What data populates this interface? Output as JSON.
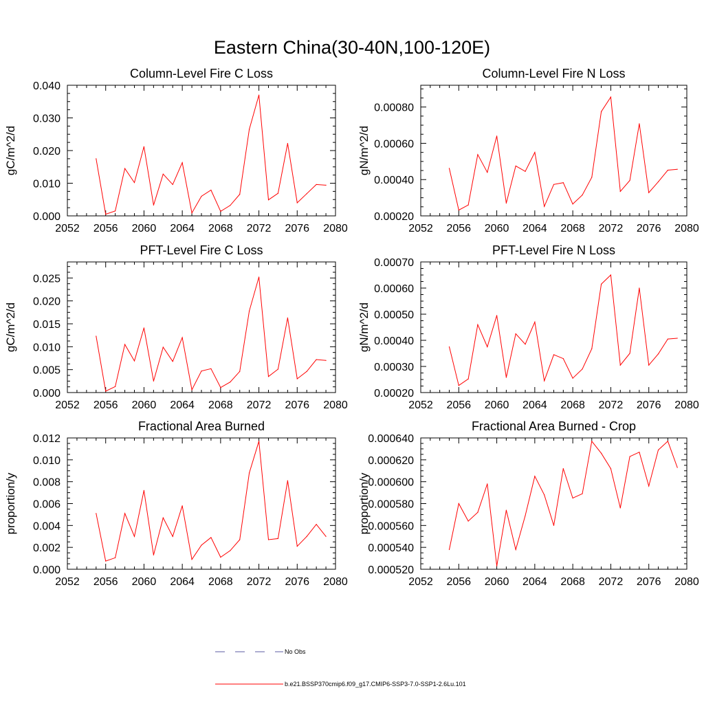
{
  "title": "Eastern China(30-40N,100-120E)",
  "legend": [
    {
      "label": "No Obs",
      "color": "#5a5aa0",
      "dash": true
    },
    {
      "label": "b.e21.BSSP370cmip6.f09_g17.CMIP6-SSP3-7.0-SSP1-2.6Lu.101",
      "color": "#ff0000",
      "dash": false
    }
  ],
  "chart_data": [
    {
      "type": "line",
      "title": "Column-Level Fire C Loss",
      "ylabel": "gC/m^2/d",
      "xlim": [
        2052,
        2080
      ],
      "xticks": [
        "2052",
        "2056",
        "2060",
        "2064",
        "2068",
        "2072",
        "2076",
        "2080"
      ],
      "ylim": [
        0,
        0.04
      ],
      "yticks": [
        "0.000",
        "0.010",
        "0.020",
        "0.030",
        "0.040"
      ],
      "x": [
        2055,
        2056,
        2057,
        2058,
        2059,
        2060,
        2061,
        2062,
        2063,
        2064,
        2065,
        2066,
        2067,
        2068,
        2069,
        2070,
        2071,
        2072,
        2073,
        2074,
        2075,
        2076,
        2077,
        2078,
        2079
      ],
      "series": [
        {
          "values": [
            0.0175,
            0.0005,
            0.0015,
            0.0145,
            0.0102,
            0.0212,
            0.0033,
            0.0128,
            0.0096,
            0.0163,
            0.0009,
            0.006,
            0.0079,
            0.0014,
            0.0032,
            0.0066,
            0.0265,
            0.037,
            0.0049,
            0.0069,
            0.0222,
            0.004,
            0.0068,
            0.0096,
            0.0094
          ]
        }
      ]
    },
    {
      "type": "line",
      "title": "Column-Level Fire N Loss",
      "ylabel": "gN/m^2/d",
      "xlim": [
        2052,
        2080
      ],
      "xticks": [
        "2052",
        "2056",
        "2060",
        "2064",
        "2068",
        "2072",
        "2076",
        "2080"
      ],
      "ylim": [
        0.0002,
        0.00092
      ],
      "yticks": [
        "0.00020",
        "0.00040",
        "0.00060",
        "0.00080"
      ],
      "x": [
        2055,
        2056,
        2057,
        2058,
        2059,
        2060,
        2061,
        2062,
        2063,
        2064,
        2065,
        2066,
        2067,
        2068,
        2069,
        2070,
        2071,
        2072,
        2073,
        2074,
        2075,
        2076,
        2077,
        2078,
        2079
      ],
      "series": [
        {
          "values": [
            0.000462,
            0.000232,
            0.00026,
            0.000538,
            0.00044,
            0.00064,
            0.00027,
            0.000475,
            0.000445,
            0.00055,
            0.000252,
            0.000373,
            0.000383,
            0.000265,
            0.000315,
            0.000413,
            0.000775,
            0.000855,
            0.000335,
            0.000395,
            0.000708,
            0.000328,
            0.000388,
            0.000452,
            0.000457
          ]
        }
      ]
    },
    {
      "type": "line",
      "title": "PFT-Level Fire C Loss",
      "ylabel": "gC/m^2/d",
      "xlim": [
        2052,
        2080
      ],
      "xticks": [
        "2052",
        "2056",
        "2060",
        "2064",
        "2068",
        "2072",
        "2076",
        "2080"
      ],
      "ylim": [
        0,
        0.0285
      ],
      "yticks": [
        "0.000",
        "0.005",
        "0.010",
        "0.015",
        "0.020",
        "0.025"
      ],
      "x": [
        2055,
        2056,
        2057,
        2058,
        2059,
        2060,
        2061,
        2062,
        2063,
        2064,
        2065,
        2066,
        2067,
        2068,
        2069,
        2070,
        2071,
        2072,
        2073,
        2074,
        2075,
        2076,
        2077,
        2078,
        2079
      ],
      "series": [
        {
          "values": [
            0.0123,
            0.0003,
            0.0013,
            0.0105,
            0.0069,
            0.0141,
            0.0025,
            0.0099,
            0.0068,
            0.012,
            0.0006,
            0.0047,
            0.0052,
            0.0011,
            0.0023,
            0.0046,
            0.0178,
            0.0252,
            0.0035,
            0.0051,
            0.0163,
            0.003,
            0.0046,
            0.0072,
            0.007
          ]
        }
      ]
    },
    {
      "type": "line",
      "title": "PFT-Level Fire N Loss",
      "ylabel": "gN/m^2/d",
      "xlim": [
        2052,
        2080
      ],
      "xticks": [
        "2052",
        "2056",
        "2060",
        "2064",
        "2068",
        "2072",
        "2076",
        "2080"
      ],
      "ylim": [
        0.0002,
        0.0007
      ],
      "yticks": [
        "0.00020",
        "0.00030",
        "0.00040",
        "0.00050",
        "0.00060",
        "0.00070"
      ],
      "x": [
        2055,
        2056,
        2057,
        2058,
        2059,
        2060,
        2061,
        2062,
        2063,
        2064,
        2065,
        2066,
        2067,
        2068,
        2069,
        2070,
        2071,
        2072,
        2073,
        2074,
        2075,
        2076,
        2077,
        2078,
        2079
      ],
      "series": [
        {
          "values": [
            0.000375,
            0.000227,
            0.000252,
            0.00046,
            0.000375,
            0.000495,
            0.000258,
            0.000425,
            0.000385,
            0.00047,
            0.000245,
            0.000345,
            0.00033,
            0.000255,
            0.00029,
            0.000368,
            0.000615,
            0.00065,
            0.000305,
            0.00035,
            0.0006,
            0.000305,
            0.000348,
            0.000405,
            0.000408
          ]
        }
      ]
    },
    {
      "type": "line",
      "title": "Fractional Area Burned",
      "ylabel": "proportion/y",
      "xlim": [
        2052,
        2080
      ],
      "xticks": [
        "2052",
        "2056",
        "2060",
        "2064",
        "2068",
        "2072",
        "2076",
        "2080"
      ],
      "ylim": [
        0,
        0.012
      ],
      "yticks": [
        "0.000",
        "0.002",
        "0.004",
        "0.006",
        "0.008",
        "0.010",
        "0.012"
      ],
      "x": [
        2055,
        2056,
        2057,
        2058,
        2059,
        2060,
        2061,
        2062,
        2063,
        2064,
        2065,
        2066,
        2067,
        2068,
        2069,
        2070,
        2071,
        2072,
        2073,
        2074,
        2075,
        2076,
        2077,
        2078,
        2079
      ],
      "series": [
        {
          "values": [
            0.0051,
            0.00075,
            0.00105,
            0.0051,
            0.003,
            0.0072,
            0.0013,
            0.0047,
            0.003,
            0.0058,
            0.0009,
            0.0022,
            0.0029,
            0.0011,
            0.0017,
            0.0027,
            0.0088,
            0.0117,
            0.0027,
            0.0028,
            0.0081,
            0.0021,
            0.003,
            0.0041,
            0.003
          ]
        }
      ]
    },
    {
      "type": "line",
      "title": "Fractional Area Burned - Crop",
      "ylabel": "proportion/y",
      "xlim": [
        2052,
        2080
      ],
      "xticks": [
        "2052",
        "2056",
        "2060",
        "2064",
        "2068",
        "2072",
        "2076",
        "2080"
      ],
      "ylim": [
        0.00052,
        0.00064
      ],
      "yticks": [
        "0.000520",
        "0.000540",
        "0.000560",
        "0.000580",
        "0.000600",
        "0.000620",
        "0.000640"
      ],
      "x": [
        2055,
        2056,
        2057,
        2058,
        2059,
        2060,
        2061,
        2062,
        2063,
        2064,
        2065,
        2066,
        2067,
        2068,
        2069,
        2070,
        2071,
        2072,
        2073,
        2074,
        2075,
        2076,
        2077,
        2078,
        2079
      ],
      "series": [
        {
          "values": [
            0.000538,
            0.00058,
            0.000564,
            0.000572,
            0.000598,
            0.000523,
            0.000574,
            0.000538,
            0.000569,
            0.000605,
            0.000588,
            0.00056,
            0.000612,
            0.000585,
            0.000589,
            0.000637,
            0.000626,
            0.000612,
            0.000576,
            0.000623,
            0.000627,
            0.000596,
            0.000629,
            0.000637,
            0.000613
          ]
        }
      ]
    }
  ]
}
